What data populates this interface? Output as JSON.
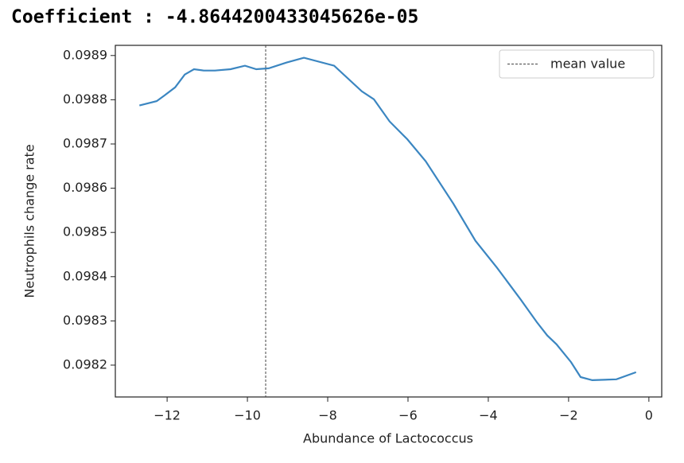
{
  "header": "Coefficient : -4.8644200433045626e-05",
  "chart_data": {
    "type": "line",
    "xlabel": "Abundance of Lactococcus",
    "ylabel": "Neutrophils change rate",
    "x": [
      -12.69,
      -12.26,
      -12.06,
      -11.8,
      -11.56,
      -11.33,
      -11.09,
      -10.81,
      -10.42,
      -10.06,
      -9.78,
      -9.47,
      -9.03,
      -8.59,
      -7.84,
      -7.15,
      -6.85,
      -6.46,
      -6.02,
      -5.56,
      -4.87,
      -4.32,
      -3.78,
      -3.19,
      -2.79,
      -2.53,
      -2.3,
      -1.94,
      -1.7,
      -1.41,
      -0.81,
      -0.32
    ],
    "series": [
      {
        "color": "#3b86c1",
        "values": [
          0.098787,
          0.098797,
          0.09881,
          0.098828,
          0.098857,
          0.098869,
          0.098866,
          0.098866,
          0.098869,
          0.098877,
          0.098869,
          0.098871,
          0.098884,
          0.098895,
          0.098877,
          0.098819,
          0.098801,
          0.098751,
          0.098711,
          0.098661,
          0.098565,
          0.098481,
          0.09842,
          0.098348,
          0.098297,
          0.098267,
          0.098247,
          0.098207,
          0.098173,
          0.098166,
          0.098168,
          0.098184
        ]
      }
    ],
    "vline": {
      "name": "mean value",
      "x": -9.545,
      "color": "#444444"
    },
    "legend": "upper right",
    "xlim": [
      -13.29,
      0.32
    ],
    "ylim": [
      0.098128,
      0.098923
    ],
    "xticks": [
      {
        "value": -12,
        "label": "−12"
      },
      {
        "value": -10,
        "label": "−10"
      },
      {
        "value": -8,
        "label": "−8"
      },
      {
        "value": -6,
        "label": "−6"
      },
      {
        "value": -4,
        "label": "−4"
      },
      {
        "value": -2,
        "label": "−2"
      },
      0
    ],
    "yticks": [
      0.0982,
      0.0983,
      0.0984,
      0.0985,
      0.0986,
      0.0987,
      0.0988,
      0.0989
    ]
  }
}
